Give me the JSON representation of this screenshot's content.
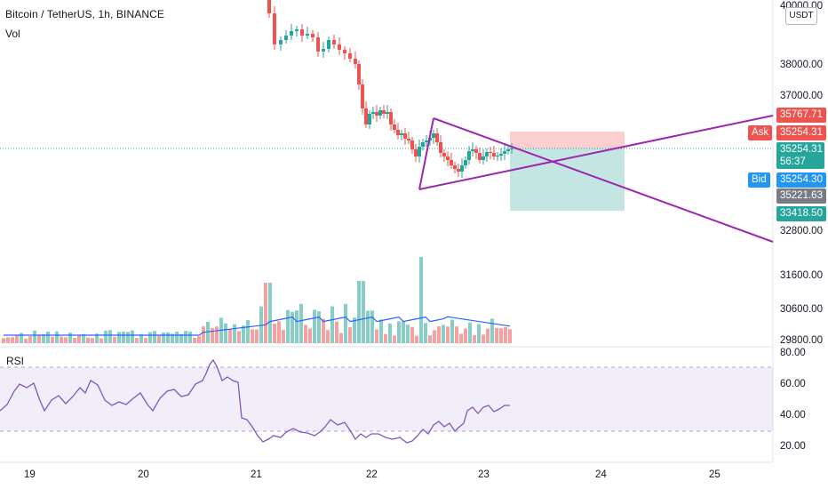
{
  "header": {
    "symbol": "Bitcoin / TetherUS, 1h, BINANCE",
    "volume_label": "Vol"
  },
  "rsi_pane": {
    "label": "RSI"
  },
  "currency_button": "USDT",
  "price_axis": {
    "ticks": [
      "40000.00",
      "38000.00",
      "37000.00",
      "32800.00",
      "31600.00",
      "30600.00",
      "29800.00"
    ]
  },
  "rsi_axis": {
    "ticks": [
      "80.00",
      "60.00",
      "40.00",
      "20.00"
    ]
  },
  "time_axis": {
    "ticks": [
      "19",
      "20",
      "21",
      "22",
      "23",
      "24",
      "25"
    ]
  },
  "price_tags": {
    "tp_line": "35767.71",
    "ask_label": "Ask",
    "ask_price": "35254.31",
    "last_price": "35254.31",
    "countdown": "56:37",
    "bid_label": "Bid",
    "bid_price": "35254.30",
    "entry_price": "35221.63",
    "sl_price": "33418.50"
  },
  "colors": {
    "up": "#26a69a",
    "down": "#ef5350",
    "trendline": "#9c27b0",
    "rsi_line": "#7e57c2",
    "vol_ma": "#2962ff",
    "ask_bg": "#ef5350",
    "bid_bg": "#2196f3",
    "entry_bg": "#787b86"
  }
}
